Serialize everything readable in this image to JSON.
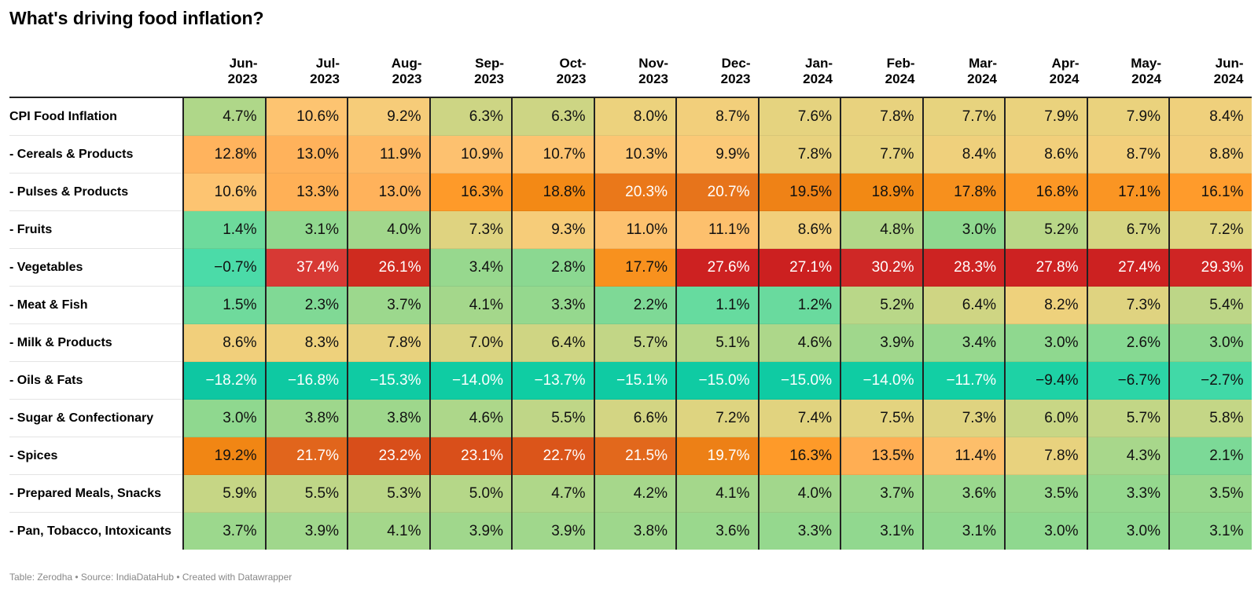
{
  "title": "What's driving food inflation?",
  "footer": "Table: Zerodha • Source: IndiaDataHub • Created with Datawrapper",
  "chart_data": {
    "type": "heatmap",
    "title": "What's driving food inflation?",
    "columns": [
      {
        "month": "Jun-",
        "year": "2023"
      },
      {
        "month": "Jul-",
        "year": "2023"
      },
      {
        "month": "Aug-",
        "year": "2023"
      },
      {
        "month": "Sep-",
        "year": "2023"
      },
      {
        "month": "Oct-",
        "year": "2023"
      },
      {
        "month": "Nov-",
        "year": "2023"
      },
      {
        "month": "Dec-",
        "year": "2023"
      },
      {
        "month": "Jan-",
        "year": "2024"
      },
      {
        "month": "Feb-",
        "year": "2024"
      },
      {
        "month": "Mar-",
        "year": "2024"
      },
      {
        "month": "Apr-",
        "year": "2024"
      },
      {
        "month": "May-",
        "year": "2024"
      },
      {
        "month": "Jun-",
        "year": "2024"
      }
    ],
    "rows": [
      {
        "label": "CPI Food Inflation",
        "values": [
          4.7,
          10.6,
          9.2,
          6.3,
          6.3,
          8.0,
          8.7,
          7.6,
          7.8,
          7.7,
          7.9,
          7.9,
          8.4
        ]
      },
      {
        "label": "- Cereals & Products",
        "values": [
          12.8,
          13.0,
          11.9,
          10.9,
          10.7,
          10.3,
          9.9,
          7.8,
          7.7,
          8.4,
          8.6,
          8.7,
          8.8
        ]
      },
      {
        "label": "- Pulses & Products",
        "values": [
          10.6,
          13.3,
          13.0,
          16.3,
          18.8,
          20.3,
          20.7,
          19.5,
          18.9,
          17.8,
          16.8,
          17.1,
          16.1
        ]
      },
      {
        "label": "- Fruits",
        "values": [
          1.4,
          3.1,
          4.0,
          7.3,
          9.3,
          11.0,
          11.1,
          8.6,
          4.8,
          3.0,
          5.2,
          6.7,
          7.2
        ]
      },
      {
        "label": "- Vegetables",
        "values": [
          -0.7,
          37.4,
          26.1,
          3.4,
          2.8,
          17.7,
          27.6,
          27.1,
          30.2,
          28.3,
          27.8,
          27.4,
          29.3
        ]
      },
      {
        "label": "- Meat & Fish",
        "values": [
          1.5,
          2.3,
          3.7,
          4.1,
          3.3,
          2.2,
          1.1,
          1.2,
          5.2,
          6.4,
          8.2,
          7.3,
          5.4
        ]
      },
      {
        "label": "- Milk & Products",
        "values": [
          8.6,
          8.3,
          7.8,
          7.0,
          6.4,
          5.7,
          5.1,
          4.6,
          3.9,
          3.4,
          3.0,
          2.6,
          3.0
        ]
      },
      {
        "label": "- Oils & Fats",
        "values": [
          -18.2,
          -16.8,
          -15.3,
          -14.0,
          -13.7,
          -15.1,
          -15.0,
          -15.0,
          -14.0,
          -11.7,
          -9.4,
          -6.7,
          -2.7
        ]
      },
      {
        "label": "- Sugar & Confectionary",
        "values": [
          3.0,
          3.8,
          3.8,
          4.6,
          5.5,
          6.6,
          7.2,
          7.4,
          7.5,
          7.3,
          6.0,
          5.7,
          5.8
        ]
      },
      {
        "label": "- Spices",
        "values": [
          19.2,
          21.7,
          23.2,
          23.1,
          22.7,
          21.5,
          19.7,
          16.3,
          13.5,
          11.4,
          7.8,
          4.3,
          2.1
        ]
      },
      {
        "label": "- Prepared Meals, Snacks",
        "values": [
          5.9,
          5.5,
          5.3,
          5.0,
          4.7,
          4.2,
          4.1,
          4.0,
          3.7,
          3.6,
          3.5,
          3.3,
          3.5
        ]
      },
      {
        "label": "- Pan, Tobacco, Intoxicants",
        "values": [
          3.7,
          3.9,
          4.1,
          3.9,
          3.9,
          3.8,
          3.6,
          3.3,
          3.1,
          3.1,
          3.0,
          3.0,
          3.1
        ]
      }
    ],
    "unit": "%",
    "color_scale": {
      "stops": [
        {
          "value": -18,
          "color": "#0ec7a2"
        },
        {
          "value": -12,
          "color": "#10cfa4"
        },
        {
          "value": 0,
          "color": "#4fdca8"
        },
        {
          "value": 3,
          "color": "#8fd88f"
        },
        {
          "value": 6,
          "color": "#c8d685"
        },
        {
          "value": 8,
          "color": "#ecd27d"
        },
        {
          "value": 10,
          "color": "#fcc877"
        },
        {
          "value": 13,
          "color": "#ffb25b"
        },
        {
          "value": 16,
          "color": "#ff9c2c"
        },
        {
          "value": 19,
          "color": "#f28813"
        },
        {
          "value": 21,
          "color": "#e5701d"
        },
        {
          "value": 23,
          "color": "#d9501a"
        },
        {
          "value": 27,
          "color": "#cc2020"
        },
        {
          "value": 38,
          "color": "#d83a35"
        }
      ]
    }
  }
}
